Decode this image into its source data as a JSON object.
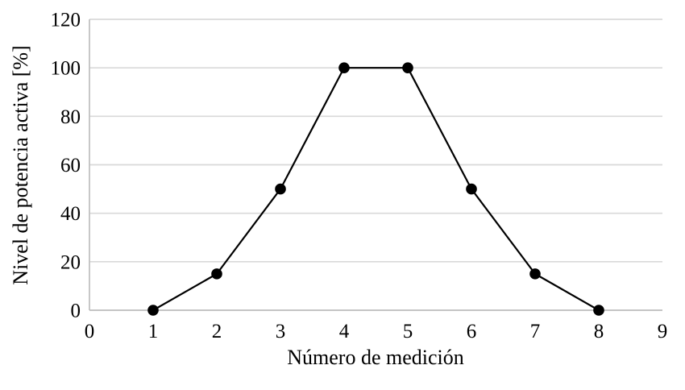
{
  "chart_data": {
    "type": "line",
    "title": "",
    "xlabel": "Número de medición",
    "ylabel": "Nivel de potencia activa [%]",
    "x": [
      1,
      2,
      3,
      4,
      5,
      6,
      7,
      8
    ],
    "values": [
      0,
      15,
      50,
      100,
      100,
      50,
      15,
      0
    ],
    "xlim": [
      0,
      9
    ],
    "ylim": [
      0,
      120
    ],
    "xticks": [
      0,
      1,
      2,
      3,
      4,
      5,
      6,
      7,
      8,
      9
    ],
    "yticks": [
      0,
      20,
      40,
      60,
      80,
      100,
      120
    ],
    "grid": "horizontal",
    "legend": "none",
    "marker": "circle",
    "colors": {
      "line": "#000000",
      "marker": "#000000",
      "gridline": "#d9d9d9",
      "axis": "#bfbfbf",
      "text": "#000000",
      "background": "#ffffff"
    }
  }
}
